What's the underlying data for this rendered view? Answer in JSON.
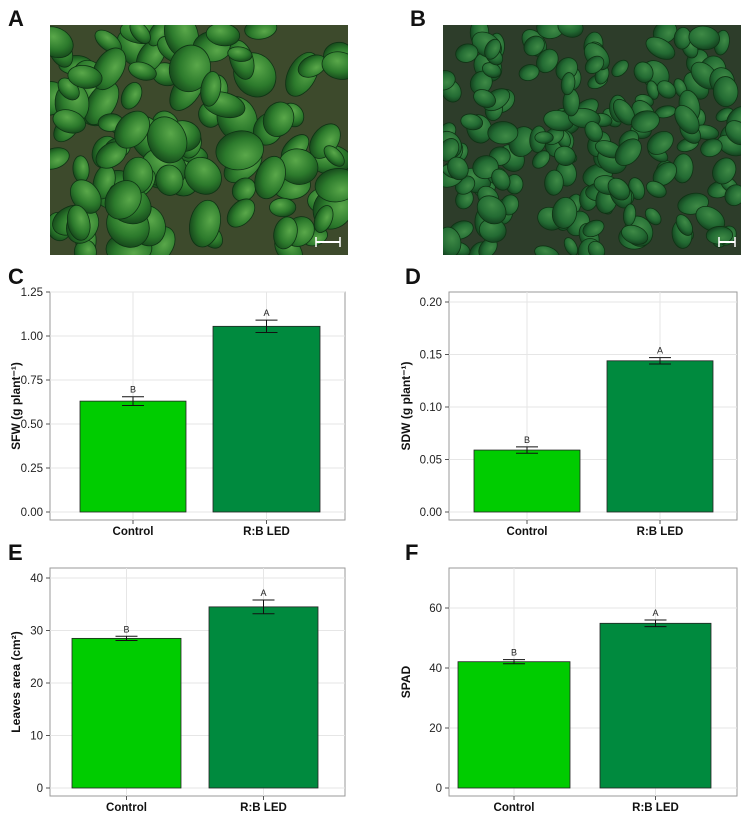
{
  "panel_labels": [
    "A",
    "B",
    "C",
    "D",
    "E",
    "F"
  ],
  "colors": {
    "control": "#00cc00",
    "rb_led": "#008a3e",
    "grid": "#e6e6e6",
    "frame": "#9a9a9a"
  },
  "photos": [
    {
      "label": "A",
      "description_icon": "plant-photo-icon"
    },
    {
      "label": "B",
      "description_icon": "plant-photo-icon"
    }
  ],
  "chart_data": [
    {
      "type": "bar",
      "panel": "C",
      "ylabel": "SFW (g plant⁻¹)",
      "categories": [
        "Control",
        "R:B LED"
      ],
      "values": [
        0.63,
        1.055
      ],
      "errors": [
        0.025,
        0.035
      ],
      "significance": [
        "B",
        "A"
      ],
      "ylim": [
        0,
        1.25
      ],
      "yticks": [
        "0.00",
        "0.25",
        "0.50",
        "0.75",
        "1.00",
        "1.25"
      ],
      "grid": true
    },
    {
      "type": "bar",
      "panel": "D",
      "ylabel": "SDW (g plant⁻¹)",
      "categories": [
        "Control",
        "R:B LED"
      ],
      "values": [
        0.059,
        0.144
      ],
      "errors": [
        0.003,
        0.003
      ],
      "significance": [
        "B",
        "A"
      ],
      "ylim": [
        0,
        0.2
      ],
      "yticks": [
        "0.00",
        "0.05",
        "0.10",
        "0.15",
        "0.20"
      ],
      "grid": true
    },
    {
      "type": "bar",
      "panel": "E",
      "ylabel": "Leaves area (cm²)",
      "categories": [
        "Control",
        "R:B LED"
      ],
      "values": [
        28.5,
        34.5
      ],
      "errors": [
        0.4,
        1.3
      ],
      "significance": [
        "B",
        "A"
      ],
      "ylim": [
        0,
        40
      ],
      "yticks": [
        "0",
        "10",
        "20",
        "30",
        "40"
      ],
      "grid": true
    },
    {
      "type": "bar",
      "panel": "F",
      "ylabel": "SPAD",
      "categories": [
        "Control",
        "R:B LED"
      ],
      "values": [
        42.1,
        54.9
      ],
      "errors": [
        0.7,
        1.1
      ],
      "significance": [
        "B",
        "A"
      ],
      "ylim": [
        0,
        60
      ],
      "yticks": [
        "0",
        "20",
        "40",
        "60"
      ],
      "grid": true
    }
  ]
}
